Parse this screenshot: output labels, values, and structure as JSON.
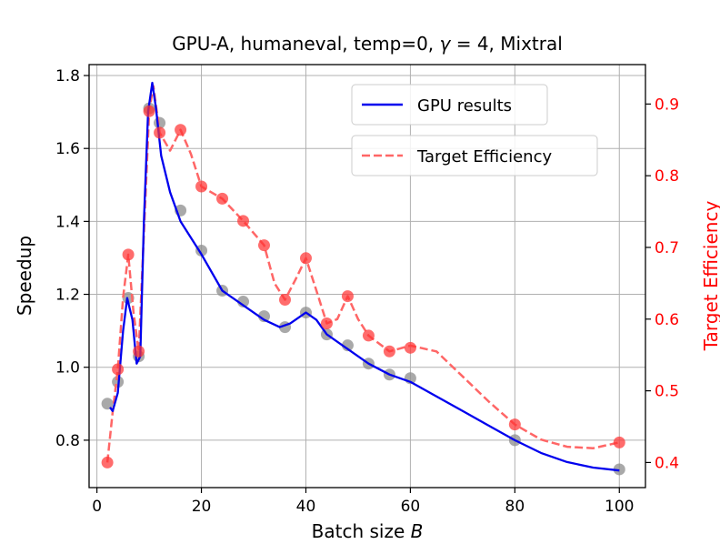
{
  "chart_data": {
    "type": "line",
    "title": "GPU-A, humaneval, temp=0, γ = 4, Mixtral",
    "title_parts": {
      "before": "GPU-A, humaneval, temp=0, ",
      "gamma": "γ",
      "eq": " = 4, Mixtral"
    },
    "xlabel_parts": {
      "text": "Batch size ",
      "var": "B"
    },
    "ylabel": "Speedup",
    "y2label": "Target Efficiency",
    "xlim": [
      -1.5,
      105
    ],
    "ylim": [
      0.67,
      1.83
    ],
    "y2lim": [
      0.365,
      0.955
    ],
    "xticks": [
      0,
      20,
      40,
      60,
      80,
      100
    ],
    "yticks": [
      0.8,
      1.0,
      1.2,
      1.4,
      1.6,
      1.8
    ],
    "y2ticks": [
      0.4,
      0.5,
      0.6,
      0.7,
      0.8,
      0.9
    ],
    "grid": true,
    "legend_location": "top-right",
    "colors": {
      "gpu": "#0000ee",
      "target": "#ff6666",
      "gpu_points": "#8c8c8c",
      "target_points": "#ff3333",
      "right_axis": "#ff0000",
      "grid": "#b0b0b0"
    },
    "series": [
      {
        "name": "GPU results",
        "axis": "left",
        "style": "solid",
        "points": [
          {
            "x": 2,
            "y": 0.9
          },
          {
            "x": 4,
            "y": 0.96
          },
          {
            "x": 6,
            "y": 1.19
          },
          {
            "x": 8,
            "y": 1.03
          },
          {
            "x": 10,
            "y": 1.71
          },
          {
            "x": 12,
            "y": 1.67
          },
          {
            "x": 16,
            "y": 1.43
          },
          {
            "x": 20,
            "y": 1.32
          },
          {
            "x": 24,
            "y": 1.21
          },
          {
            "x": 28,
            "y": 1.18
          },
          {
            "x": 32,
            "y": 1.14
          },
          {
            "x": 36,
            "y": 1.11
          },
          {
            "x": 40,
            "y": 1.15
          },
          {
            "x": 44,
            "y": 1.09
          },
          {
            "x": 48,
            "y": 1.06
          },
          {
            "x": 52,
            "y": 1.01
          },
          {
            "x": 56,
            "y": 0.98
          },
          {
            "x": 60,
            "y": 0.97
          },
          {
            "x": 80,
            "y": 0.8
          },
          {
            "x": 100,
            "y": 0.72
          }
        ],
        "curve": [
          {
            "x": 2.5,
            "y": 0.89
          },
          {
            "x": 3.0,
            "y": 0.88
          },
          {
            "x": 4.0,
            "y": 0.93
          },
          {
            "x": 5.0,
            "y": 1.1
          },
          {
            "x": 5.8,
            "y": 1.19
          },
          {
            "x": 6.8,
            "y": 1.13
          },
          {
            "x": 7.6,
            "y": 1.01
          },
          {
            "x": 8.3,
            "y": 1.03
          },
          {
            "x": 9.0,
            "y": 1.4
          },
          {
            "x": 9.8,
            "y": 1.7
          },
          {
            "x": 10.6,
            "y": 1.78
          },
          {
            "x": 11.3,
            "y": 1.71
          },
          {
            "x": 12.3,
            "y": 1.58
          },
          {
            "x": 14.0,
            "y": 1.48
          },
          {
            "x": 16.0,
            "y": 1.4
          },
          {
            "x": 20.0,
            "y": 1.31
          },
          {
            "x": 24.0,
            "y": 1.21
          },
          {
            "x": 28.0,
            "y": 1.17
          },
          {
            "x": 32.0,
            "y": 1.13
          },
          {
            "x": 35.0,
            "y": 1.11
          },
          {
            "x": 37.0,
            "y": 1.12
          },
          {
            "x": 40.0,
            "y": 1.15
          },
          {
            "x": 42.0,
            "y": 1.13
          },
          {
            "x": 44.0,
            "y": 1.09
          },
          {
            "x": 48.0,
            "y": 1.05
          },
          {
            "x": 52.0,
            "y": 1.01
          },
          {
            "x": 56.0,
            "y": 0.98
          },
          {
            "x": 60.0,
            "y": 0.96
          },
          {
            "x": 65.0,
            "y": 0.92
          },
          {
            "x": 70.0,
            "y": 0.88
          },
          {
            "x": 75.0,
            "y": 0.84
          },
          {
            "x": 80.0,
            "y": 0.8
          },
          {
            "x": 85.0,
            "y": 0.765
          },
          {
            "x": 90.0,
            "y": 0.74
          },
          {
            "x": 95.0,
            "y": 0.725
          },
          {
            "x": 100.0,
            "y": 0.717
          }
        ]
      },
      {
        "name": "Target Efficiency",
        "axis": "right",
        "style": "dashed",
        "points": [
          {
            "x": 2,
            "y": 0.4
          },
          {
            "x": 4,
            "y": 0.53
          },
          {
            "x": 6,
            "y": 0.69
          },
          {
            "x": 8,
            "y": 0.555
          },
          {
            "x": 10,
            "y": 0.89
          },
          {
            "x": 12,
            "y": 0.86
          },
          {
            "x": 16,
            "y": 0.864
          },
          {
            "x": 20,
            "y": 0.785
          },
          {
            "x": 24,
            "y": 0.768
          },
          {
            "x": 28,
            "y": 0.737
          },
          {
            "x": 32,
            "y": 0.703
          },
          {
            "x": 36,
            "y": 0.627
          },
          {
            "x": 40,
            "y": 0.685
          },
          {
            "x": 44,
            "y": 0.594
          },
          {
            "x": 48,
            "y": 0.632
          },
          {
            "x": 52,
            "y": 0.577
          },
          {
            "x": 56,
            "y": 0.555
          },
          {
            "x": 60,
            "y": 0.56
          },
          {
            "x": 80,
            "y": 0.453
          },
          {
            "x": 100,
            "y": 0.428
          }
        ],
        "curve": [
          {
            "x": 2,
            "y": 0.4
          },
          {
            "x": 3,
            "y": 0.47
          },
          {
            "x": 4,
            "y": 0.53
          },
          {
            "x": 5,
            "y": 0.63
          },
          {
            "x": 6,
            "y": 0.69
          },
          {
            "x": 7,
            "y": 0.61
          },
          {
            "x": 8,
            "y": 0.555
          },
          {
            "x": 9,
            "y": 0.72
          },
          {
            "x": 10,
            "y": 0.89
          },
          {
            "x": 10.8,
            "y": 0.925
          },
          {
            "x": 12,
            "y": 0.86
          },
          {
            "x": 14,
            "y": 0.835
          },
          {
            "x": 16,
            "y": 0.864
          },
          {
            "x": 18,
            "y": 0.83
          },
          {
            "x": 20,
            "y": 0.785
          },
          {
            "x": 24,
            "y": 0.768
          },
          {
            "x": 28,
            "y": 0.737
          },
          {
            "x": 32,
            "y": 0.703
          },
          {
            "x": 34,
            "y": 0.65
          },
          {
            "x": 36,
            "y": 0.627
          },
          {
            "x": 38,
            "y": 0.655
          },
          {
            "x": 40,
            "y": 0.685
          },
          {
            "x": 42,
            "y": 0.64
          },
          {
            "x": 44,
            "y": 0.594
          },
          {
            "x": 46,
            "y": 0.6
          },
          {
            "x": 48,
            "y": 0.632
          },
          {
            "x": 50,
            "y": 0.6
          },
          {
            "x": 52,
            "y": 0.577
          },
          {
            "x": 56,
            "y": 0.555
          },
          {
            "x": 60,
            "y": 0.563
          },
          {
            "x": 65,
            "y": 0.555
          },
          {
            "x": 70,
            "y": 0.52
          },
          {
            "x": 75,
            "y": 0.485
          },
          {
            "x": 80,
            "y": 0.453
          },
          {
            "x": 85,
            "y": 0.432
          },
          {
            "x": 90,
            "y": 0.422
          },
          {
            "x": 95,
            "y": 0.42
          },
          {
            "x": 100,
            "y": 0.428
          }
        ]
      }
    ]
  }
}
